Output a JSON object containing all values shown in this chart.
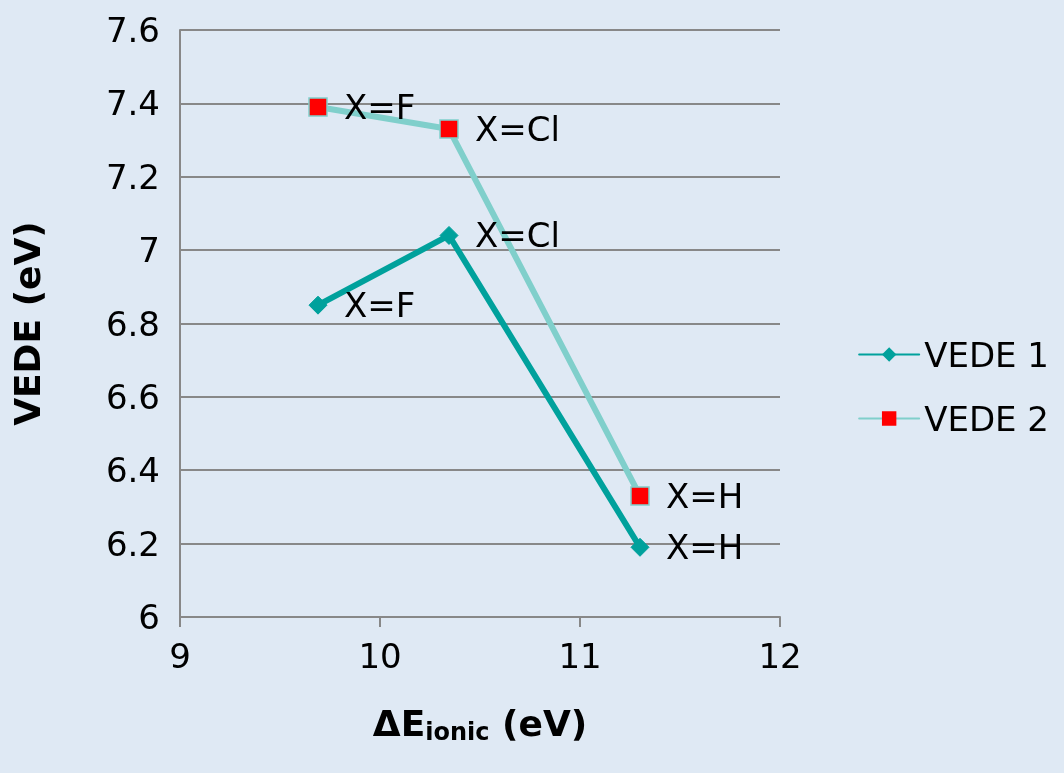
{
  "chart_data": {
    "type": "line",
    "xlabel": "ΔE$_{ionic}$ (eV)",
    "ylabel": "VEDE (eV)",
    "xlim": [
      9,
      12
    ],
    "xticks": [
      9,
      10,
      11,
      12
    ],
    "ylim": [
      6,
      7.6
    ],
    "yticks": [
      6,
      6.2,
      6.4,
      6.6,
      6.8,
      7,
      7.2,
      7.4,
      7.6
    ],
    "grid": "y",
    "legend": "right",
    "line_style": "solid",
    "series": [
      {
        "name": "VEDE 1",
        "color": "#00a19c",
        "marker": "diamond",
        "x": [
          9.69,
          10.345,
          11.3
        ],
        "values": [
          6.85,
          7.04,
          6.19
        ]
      },
      {
        "name": "VEDE 2",
        "color": "#80cfcb",
        "colors": [
          "#ff0000",
          "#ff0000",
          "#ff0000"
        ],
        "marker": "square",
        "x": [
          9.69,
          10.345,
          11.3
        ],
        "values": [
          7.39,
          7.33,
          6.33
        ]
      }
    ],
    "annotations": [
      {
        "text": "X=F",
        "x": 9.69,
        "y": 6.85
      },
      {
        "text": "X=Cl",
        "x": 10.345,
        "y": 7.04
      },
      {
        "text": "X=H",
        "x": 11.3,
        "y": 6.19
      },
      {
        "text": "X=F",
        "x": 9.69,
        "y": 7.39
      },
      {
        "text": "X=Cl",
        "x": 10.345,
        "y": 7.33
      },
      {
        "text": "X=H",
        "x": 11.3,
        "y": 6.33
      }
    ]
  }
}
